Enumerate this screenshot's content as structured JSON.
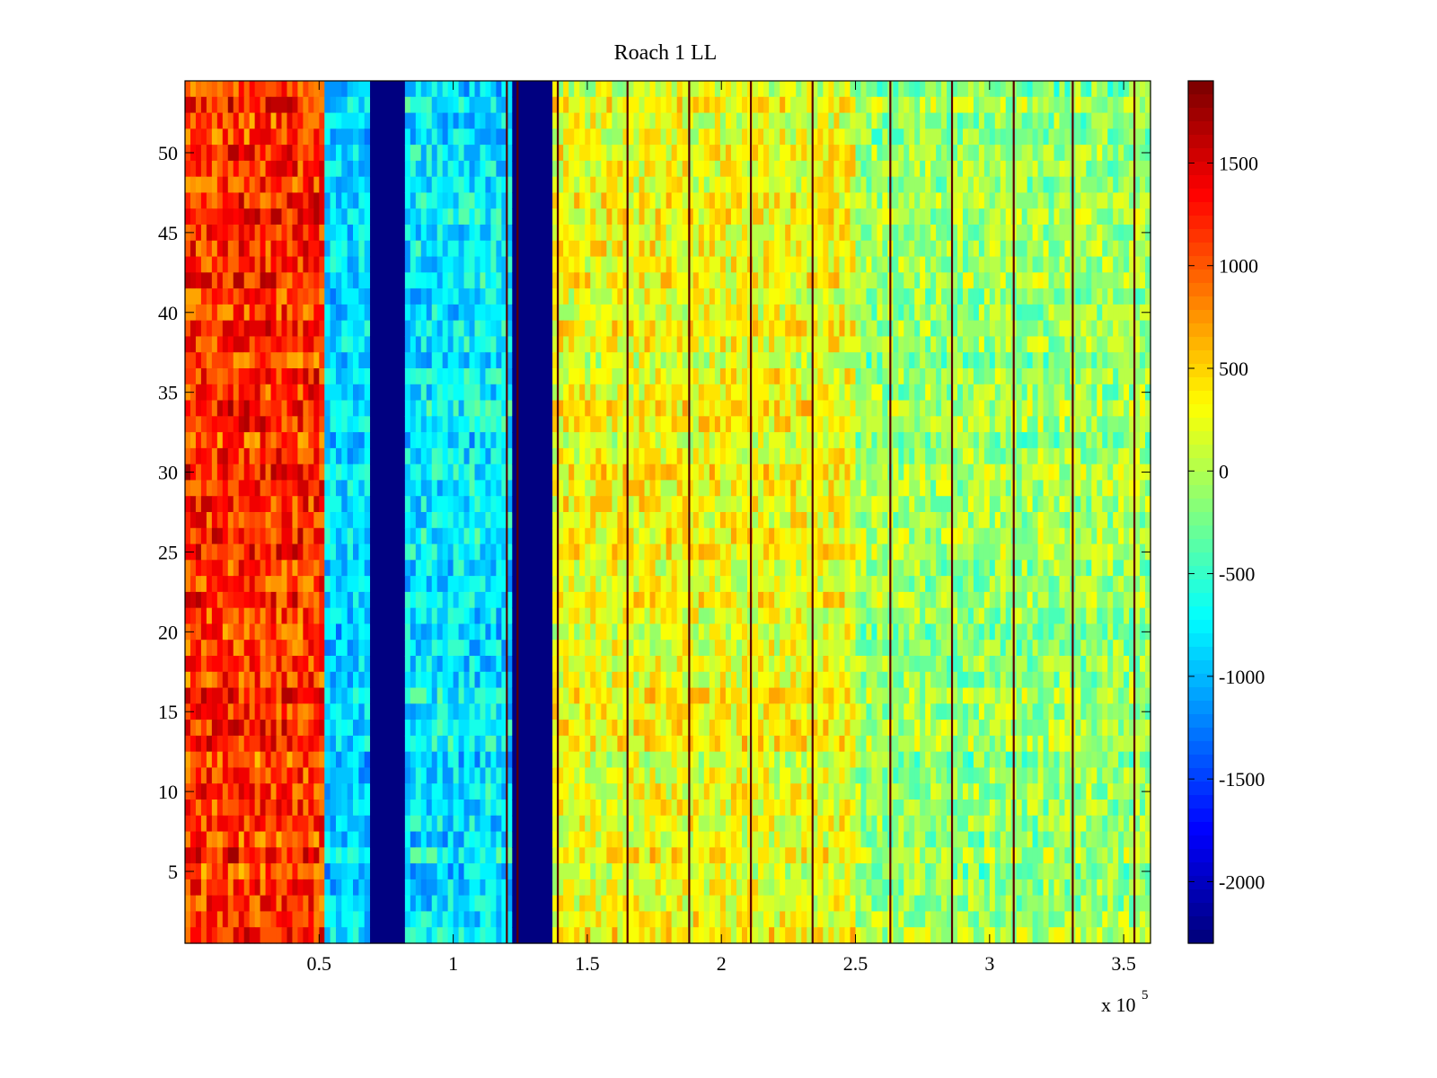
{
  "chart_data": {
    "type": "heatmap",
    "title": "Roach 1 LL",
    "xlabel": "",
    "ylabel": "",
    "x_exponent_label": "x 10",
    "x_exponent_power": "5",
    "xlim": [
      0,
      360000
    ],
    "ylim": [
      0.5,
      54.5
    ],
    "x_ticks": [
      50000,
      100000,
      150000,
      200000,
      250000,
      300000,
      350000
    ],
    "x_tick_labels": [
      "0.5",
      "1",
      "1.5",
      "2",
      "2.5",
      "3",
      "3.5"
    ],
    "y_ticks": [
      5,
      10,
      15,
      20,
      25,
      30,
      35,
      40,
      45,
      50
    ],
    "y_tick_labels": [
      "5",
      "10",
      "15",
      "20",
      "25",
      "30",
      "35",
      "40",
      "45",
      "50"
    ],
    "rows": 54,
    "colorbar": {
      "colormap": "jet",
      "clim": [
        -2300,
        1900
      ],
      "ticks": [
        -2000,
        -1500,
        -1000,
        -500,
        0,
        500,
        1000,
        1500
      ],
      "tick_labels": [
        "-2000",
        "-1500",
        "-1000",
        "-500",
        "0",
        "500",
        "1000",
        "1500"
      ],
      "levels": 64
    },
    "regions": [
      {
        "x": [
          0,
          52000
        ],
        "mean": 1150,
        "spread": 450
      },
      {
        "x": [
          52000,
          69000
        ],
        "mean": -900,
        "spread": 350
      },
      {
        "x": [
          69000,
          82000
        ],
        "mean": -2300,
        "spread": 0
      },
      {
        "x": [
          82000,
          122000
        ],
        "mean": -800,
        "spread": 400
      },
      {
        "x": [
          122000,
          137000
        ],
        "mean": -2300,
        "spread": 0
      },
      {
        "x": [
          137000,
          250000
        ],
        "mean": 250,
        "spread": 380
      },
      {
        "x": [
          250000,
          360000
        ],
        "mean": -100,
        "spread": 380
      }
    ],
    "dark_lines_x": [
      120000,
      124000,
      139000,
      165000,
      188000,
      211000,
      234000,
      263000,
      286000,
      309000,
      331000,
      354000
    ]
  }
}
